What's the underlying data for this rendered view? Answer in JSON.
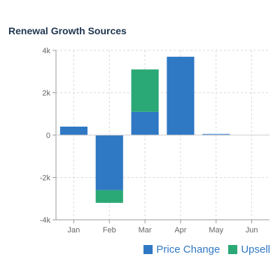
{
  "chart_data": {
    "type": "bar",
    "stacked": true,
    "title": "Renewal Growth Sources",
    "categories": [
      "Jan",
      "Feb",
      "Mar",
      "Apr",
      "May",
      "Jun"
    ],
    "series": [
      {
        "name": "Price Change",
        "color": "#2f78c4",
        "values": [
          400,
          -2600,
          1100,
          3700,
          50,
          0
        ]
      },
      {
        "name": "Upsell",
        "color": "#2aa876",
        "values": [
          0,
          -600,
          2000,
          0,
          0,
          0
        ]
      }
    ],
    "ylim": [
      -4000,
      4000
    ],
    "yticks": [
      {
        "value": 4000,
        "label": "4k"
      },
      {
        "value": 2000,
        "label": "2k"
      },
      {
        "value": 0,
        "label": "0"
      },
      {
        "value": -2000,
        "label": "-2k"
      },
      {
        "value": -4000,
        "label": "-4k"
      }
    ],
    "xlabel": "",
    "ylabel": "",
    "grid": true,
    "legend_position": "bottom-right"
  }
}
